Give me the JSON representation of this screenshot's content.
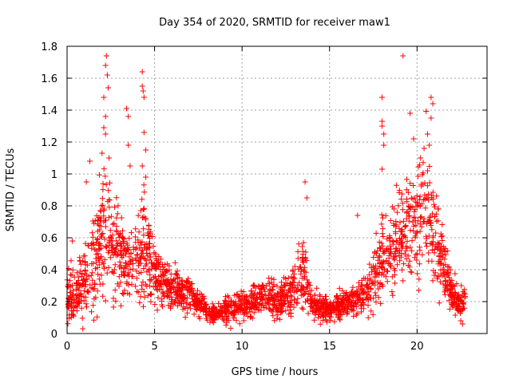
{
  "chart_data": {
    "type": "scatter",
    "title": "Day 354 of 2020, SRMTID for receiver maw1",
    "xlabel": "GPS time / hours",
    "ylabel": "SRMTID / TECUs",
    "xlim": [
      0,
      24
    ],
    "ylim": [
      0,
      1.8
    ],
    "xticks": [
      0,
      5,
      10,
      15,
      20
    ],
    "xtick_labels": [
      "0",
      "5",
      "10",
      "15",
      "20"
    ],
    "yticks": [
      0,
      0.2,
      0.4,
      0.6,
      0.8,
      1,
      1.2,
      1.4,
      1.6,
      1.8
    ],
    "ytick_labels": [
      "0",
      "0.2",
      "0.4",
      "0.6",
      "0.8",
      "1",
      "1.2",
      "1.4",
      "1.6",
      "1.8"
    ],
    "grid": true,
    "marker": "plus",
    "color": "#ff0000",
    "profile": [
      [
        0.0,
        0.24,
        0.12
      ],
      [
        0.5,
        0.25,
        0.12
      ],
      [
        1.0,
        0.32,
        0.15
      ],
      [
        1.5,
        0.42,
        0.18
      ],
      [
        2.0,
        0.6,
        0.26
      ],
      [
        2.3,
        0.68,
        0.3
      ],
      [
        2.6,
        0.48,
        0.18
      ],
      [
        3.0,
        0.52,
        0.18
      ],
      [
        3.5,
        0.42,
        0.15
      ],
      [
        4.0,
        0.45,
        0.17
      ],
      [
        4.4,
        0.58,
        0.24
      ],
      [
        5.0,
        0.38,
        0.12
      ],
      [
        6.0,
        0.28,
        0.08
      ],
      [
        7.0,
        0.24,
        0.07
      ],
      [
        8.0,
        0.14,
        0.04
      ],
      [
        8.5,
        0.12,
        0.03
      ],
      [
        9.0,
        0.15,
        0.05
      ],
      [
        10.0,
        0.18,
        0.06
      ],
      [
        11.0,
        0.22,
        0.07
      ],
      [
        12.0,
        0.2,
        0.07
      ],
      [
        13.0,
        0.27,
        0.09
      ],
      [
        13.6,
        0.4,
        0.14
      ],
      [
        14.0,
        0.18,
        0.06
      ],
      [
        15.0,
        0.15,
        0.05
      ],
      [
        16.0,
        0.2,
        0.06
      ],
      [
        17.0,
        0.23,
        0.07
      ],
      [
        18.0,
        0.48,
        0.2
      ],
      [
        19.0,
        0.58,
        0.2
      ],
      [
        20.0,
        0.72,
        0.25
      ],
      [
        20.5,
        0.82,
        0.26
      ],
      [
        21.0,
        0.6,
        0.22
      ],
      [
        21.5,
        0.42,
        0.14
      ],
      [
        22.0,
        0.23,
        0.07
      ],
      [
        22.6,
        0.2,
        0.07
      ]
    ],
    "spikes": [
      [
        0.3,
        0.58
      ],
      [
        0.9,
        0.03
      ],
      [
        1.1,
        0.95
      ],
      [
        1.3,
        1.08
      ],
      [
        2.0,
        1.13
      ],
      [
        2.1,
        1.29
      ],
      [
        2.1,
        1.48
      ],
      [
        2.2,
        1.68
      ],
      [
        2.25,
        1.74
      ],
      [
        2.3,
        1.62
      ],
      [
        2.35,
        1.54
      ],
      [
        2.2,
        1.36
      ],
      [
        2.2,
        1.25
      ],
      [
        2.4,
        1.1
      ],
      [
        3.4,
        1.41
      ],
      [
        3.5,
        1.36
      ],
      [
        3.5,
        1.18
      ],
      [
        3.6,
        1.05
      ],
      [
        4.3,
        1.64
      ],
      [
        4.3,
        1.55
      ],
      [
        4.35,
        1.52
      ],
      [
        4.4,
        1.48
      ],
      [
        4.4,
        1.26
      ],
      [
        4.5,
        1.15
      ],
      [
        4.3,
        1.05
      ],
      [
        4.5,
        0.98
      ],
      [
        13.6,
        0.95
      ],
      [
        13.7,
        0.85
      ],
      [
        16.6,
        0.74
      ],
      [
        18.0,
        1.48
      ],
      [
        18.0,
        1.33
      ],
      [
        18.0,
        1.3
      ],
      [
        18.1,
        1.25
      ],
      [
        18.1,
        1.18
      ],
      [
        18.0,
        1.03
      ],
      [
        19.2,
        1.74
      ],
      [
        19.6,
        1.38
      ],
      [
        19.8,
        1.22
      ],
      [
        20.2,
        1.1
      ],
      [
        20.4,
        1.16
      ],
      [
        20.6,
        1.25
      ],
      [
        20.8,
        1.48
      ],
      [
        20.9,
        1.44
      ],
      [
        20.8,
        1.35
      ],
      [
        20.7,
        1.18
      ],
      [
        20.6,
        1.02
      ],
      [
        21.2,
        0.78
      ],
      [
        22.5,
        0.08
      ],
      [
        22.6,
        0.06
      ],
      [
        0.05,
        0.2
      ]
    ],
    "point_count": 2200,
    "x_end": 22.75,
    "seed": 354
  }
}
